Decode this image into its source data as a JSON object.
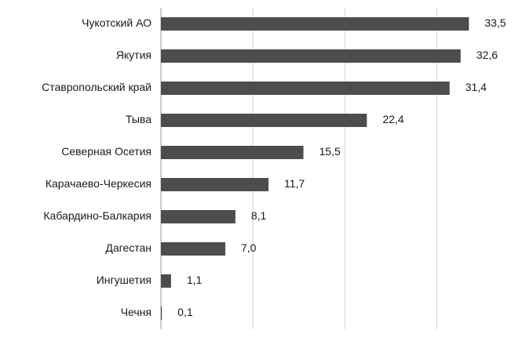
{
  "chart_data": {
    "type": "hbar",
    "categories": [
      "Чукотский АО",
      "Якутия",
      "Ставропольский край",
      "Тыва",
      "Северная Осетия",
      "Карачаево-Черкесия",
      "Кабардино-Балкария",
      "Дагестан",
      "Ингушетия",
      "Чечня"
    ],
    "values": [
      33.5,
      32.6,
      31.4,
      22.4,
      15.5,
      11.7,
      8.1,
      7.0,
      1.1,
      0.1
    ],
    "value_labels": [
      "33,5",
      "32,6",
      "31,4",
      "22,4",
      "15,5",
      "11,7",
      "8,1",
      "7,0",
      "1,1",
      "0,1"
    ],
    "color": "#4d4d4d",
    "xlim": [
      0,
      38
    ],
    "xticks": [
      10,
      20,
      30
    ],
    "grid": true
  }
}
